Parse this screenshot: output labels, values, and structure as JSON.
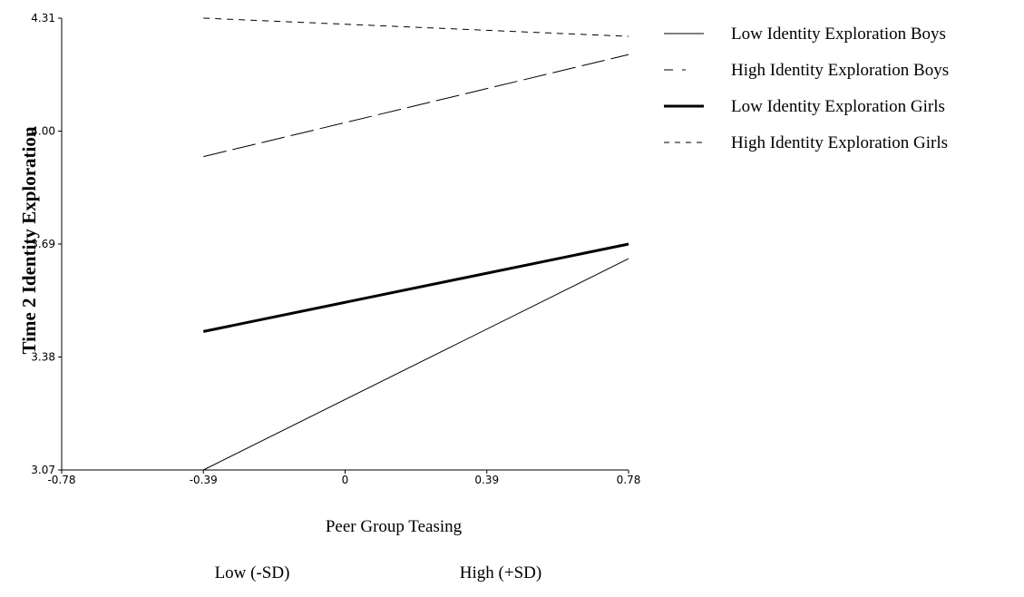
{
  "chart_data": {
    "type": "line",
    "title": "",
    "xlabel": "Peer Group Teasing",
    "ylabel": "Time 2 Identity Exploration",
    "xlim": [
      -0.78,
      0.78
    ],
    "ylim": [
      3.07,
      4.31
    ],
    "x_ticks": [
      "-0.78",
      "-0.39",
      "0",
      "0.39",
      "0.78"
    ],
    "y_ticks": [
      "3.07",
      "3.38",
      "3.69",
      "4.00",
      "4.31"
    ],
    "x_ticks_values": [
      -0.78,
      -0.39,
      0,
      0.39,
      0.78
    ],
    "y_ticks_values": [
      3.07,
      3.38,
      3.69,
      4.0,
      4.31
    ],
    "x": [
      -0.39,
      0.78
    ],
    "grid": false,
    "legend_position": "top-right",
    "level_labels": [
      "Low (-SD)",
      "High (+SD)"
    ],
    "series": [
      {
        "name": "Low Identity Exploration Boys",
        "x": [
          -0.39,
          0.78
        ],
        "values": [
          3.07,
          3.65
        ],
        "style": "solid",
        "weight": "thin",
        "color": "#000000"
      },
      {
        "name": "High Identity Exploration Boys",
        "x": [
          -0.39,
          0.78
        ],
        "values": [
          3.93,
          4.21
        ],
        "style": "longdash",
        "weight": "thin",
        "color": "#000000"
      },
      {
        "name": "Low Identity Exploration Girls",
        "x": [
          -0.39,
          0.78
        ],
        "values": [
          3.45,
          3.69
        ],
        "style": "solid",
        "weight": "thick",
        "color": "#000000"
      },
      {
        "name": "High Identity Exploration Girls",
        "x": [
          -0.39,
          0.78
        ],
        "values": [
          4.31,
          4.26
        ],
        "style": "shortdash",
        "weight": "thin",
        "color": "#000000"
      }
    ]
  }
}
